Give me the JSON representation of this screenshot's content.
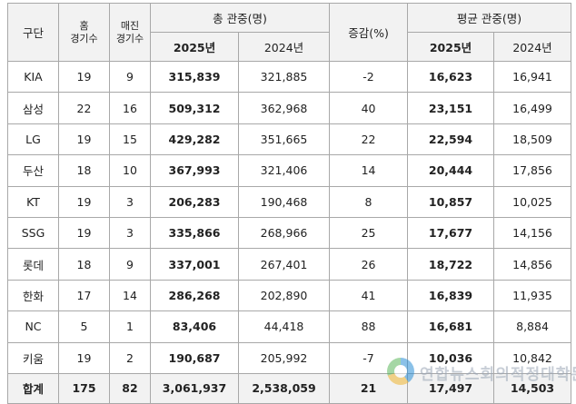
{
  "headers": {
    "team": "구단",
    "home_games": "홈\n경기수",
    "sellout_games": "매진\n경기수",
    "total_attendance": "총 관중(명)",
    "change": "증감(%)",
    "avg_attendance": "평균 관중(명)",
    "year_2025": "2025년",
    "year_2024": "2024년"
  },
  "rows": [
    {
      "team": "KIA",
      "home": "19",
      "sellout": "9",
      "total_2025": "315,839",
      "total_2024": "321,885",
      "change": "-2",
      "avg_2025": "16,623",
      "avg_2024": "16,941"
    },
    {
      "team": "삼성",
      "home": "22",
      "sellout": "16",
      "total_2025": "509,312",
      "total_2024": "362,968",
      "change": "40",
      "avg_2025": "23,151",
      "avg_2024": "16,499"
    },
    {
      "team": "LG",
      "home": "19",
      "sellout": "15",
      "total_2025": "429,282",
      "total_2024": "351,665",
      "change": "22",
      "avg_2025": "22,594",
      "avg_2024": "18,509"
    },
    {
      "team": "두산",
      "home": "18",
      "sellout": "10",
      "total_2025": "367,993",
      "total_2024": "321,406",
      "change": "14",
      "avg_2025": "20,444",
      "avg_2024": "17,856"
    },
    {
      "team": "KT",
      "home": "19",
      "sellout": "3",
      "total_2025": "206,283",
      "total_2024": "190,468",
      "change": "8",
      "avg_2025": "10,857",
      "avg_2024": "10,025"
    },
    {
      "team": "SSG",
      "home": "19",
      "sellout": "3",
      "total_2025": "335,866",
      "total_2024": "268,966",
      "change": "25",
      "avg_2025": "17,677",
      "avg_2024": "14,156"
    },
    {
      "team": "롯데",
      "home": "18",
      "sellout": "9",
      "total_2025": "337,001",
      "total_2024": "267,401",
      "change": "26",
      "avg_2025": "18,722",
      "avg_2024": "14,856"
    },
    {
      "team": "한화",
      "home": "17",
      "sellout": "14",
      "total_2025": "286,268",
      "total_2024": "202,890",
      "change": "41",
      "avg_2025": "16,839",
      "avg_2024": "11,935"
    },
    {
      "team": "NC",
      "home": "5",
      "sellout": "1",
      "total_2025": "83,406",
      "total_2024": "44,418",
      "change": "88",
      "avg_2025": "16,681",
      "avg_2024": "8,884"
    },
    {
      "team": "키움",
      "home": "19",
      "sellout": "2",
      "total_2025": "190,687",
      "total_2024": "205,992",
      "change": "-7",
      "avg_2025": "10,036",
      "avg_2024": "10,842"
    }
  ],
  "total": {
    "team": "합계",
    "home": "175",
    "sellout": "82",
    "total_2025": "3,061,937",
    "total_2024": "2,538,059",
    "change": "21",
    "avg_2025": "17,497",
    "avg_2024": "14,503"
  },
  "watermark": {
    "text": "연합뉴스회의적정대학문"
  }
}
